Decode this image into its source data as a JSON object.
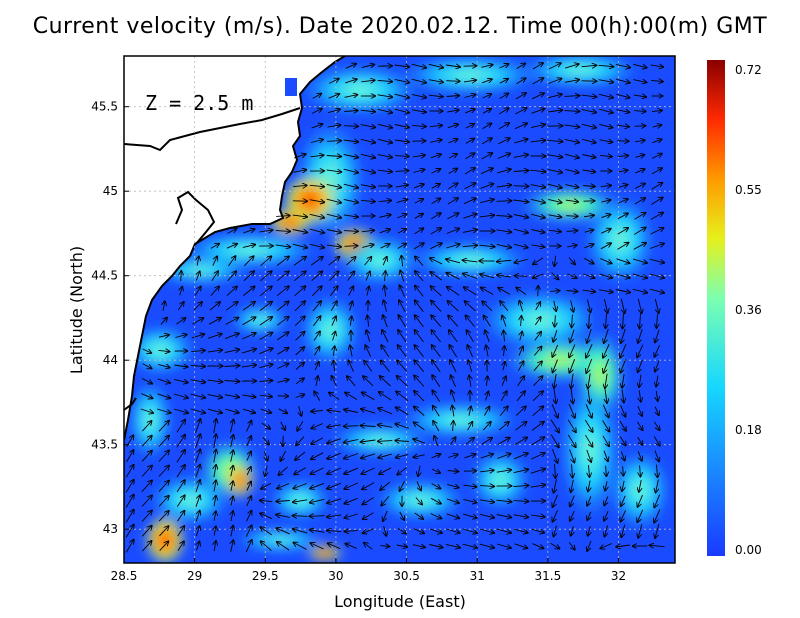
{
  "title": "Current velocity (m/s). Date 2020.02.12. Time 00(h):00(m) GMT",
  "depth_label": "Z = 2.5 m",
  "x_axis": {
    "label": "Longitude (East)",
    "range": [
      28.5,
      32.4
    ],
    "ticks": [
      "28.5",
      "29",
      "29.5",
      "30",
      "30.5",
      "31",
      "31.5",
      "32"
    ]
  },
  "y_axis": {
    "label": "Latitude (North)",
    "range": [
      42.8,
      45.8
    ],
    "ticks": [
      "43",
      "43.5",
      "44",
      "44.5",
      "45",
      "45.5"
    ]
  },
  "colorbar": {
    "ticks": [
      "0.72",
      "0.55",
      "0.36",
      "0.18",
      "0.00"
    ],
    "colors": [
      "#1a3aff",
      "#1a8cff",
      "#16d7ff",
      "#7cffb0",
      "#e6f01c",
      "#ff9a00",
      "#ff2a00",
      "#8a0000"
    ]
  },
  "grid": "dotted",
  "colors": {
    "land": "#ffffff",
    "coast": "#000000",
    "sea_low": "#1a4bff"
  }
}
